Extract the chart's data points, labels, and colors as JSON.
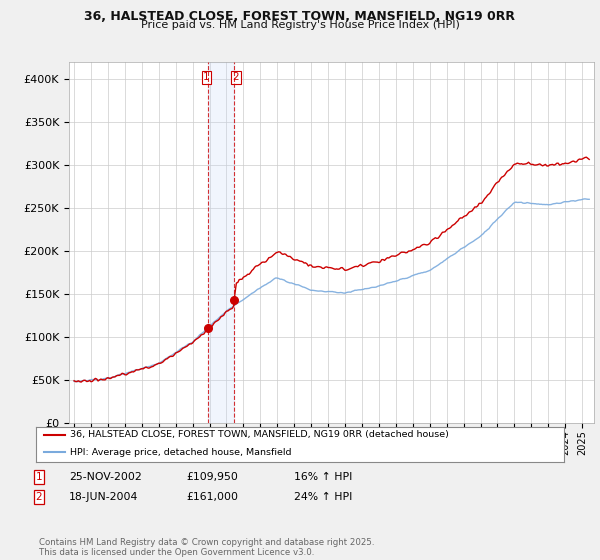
{
  "title_line1": "36, HALSTEAD CLOSE, FOREST TOWN, MANSFIELD, NG19 0RR",
  "title_line2": "Price paid vs. HM Land Registry's House Price Index (HPI)",
  "legend_label_red": "36, HALSTEAD CLOSE, FOREST TOWN, MANSFIELD, NG19 0RR (detached house)",
  "legend_label_blue": "HPI: Average price, detached house, Mansfield",
  "transaction1_date": "25-NOV-2002",
  "transaction1_price": "£109,950",
  "transaction1_hpi": "16% ↑ HPI",
  "transaction2_date": "18-JUN-2004",
  "transaction2_price": "£161,000",
  "transaction2_hpi": "24% ↑ HPI",
  "footer": "Contains HM Land Registry data © Crown copyright and database right 2025.\nThis data is licensed under the Open Government Licence v3.0.",
  "red_color": "#cc0000",
  "blue_color": "#7aaadd",
  "vline_shade_color": "#c8d8f8",
  "background_color": "#f0f0f0",
  "plot_bg_color": "#ffffff",
  "note_box_color": "#cc0000",
  "ylim": [
    0,
    420000
  ],
  "yticks": [
    0,
    50000,
    100000,
    150000,
    200000,
    250000,
    300000,
    350000,
    400000
  ],
  "price1": 109950,
  "price2": 161000,
  "t1": 2002.9167,
  "t2": 2004.4583
}
